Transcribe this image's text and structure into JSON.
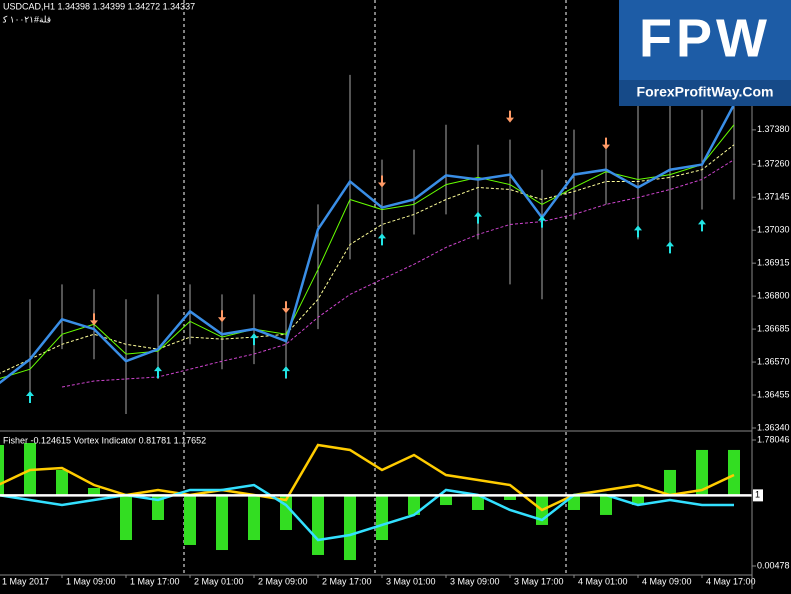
{
  "chart_data": [
    {
      "type": "price",
      "title": "USDCAD,H1  1.34398 1.34399 1.34272 1.34337",
      "subtitle": "ﻗﻠﺔ#١٠٠٢١ ﮐ",
      "ylim": [
        1.3634,
        1.37833
      ],
      "yticks": [
        {
          "value": 1.3738,
          "label": "1.37380"
        },
        {
          "value": 1.3726,
          "label": "1.37260"
        },
        1.37145,
        {
          "value": 1.3703,
          "label": "1.37030"
        },
        1.36915,
        {
          "value": 1.368,
          "label": "1.36800"
        },
        1.36685,
        {
          "value": 1.3657,
          "label": "1.36570"
        },
        1.36455,
        {
          "value": 1.3634,
          "label": "1.36340"
        }
      ],
      "candle_color": "#a8a8a8",
      "high": [
        1.3665,
        1.36789,
        1.36841,
        1.36824,
        1.36789,
        1.36806,
        1.36841,
        1.36806,
        1.36806,
        1.36754,
        1.3712,
        1.37572,
        1.37276,
        1.37311,
        1.37398,
        1.37328,
        1.37346,
        1.37241,
        1.37381,
        1.37346,
        1.37502,
        1.37468,
        1.3745,
        1.37624
      ],
      "low": [
        1.36371,
        1.36458,
        1.36615,
        1.3658,
        1.36389,
        1.36511,
        1.36632,
        1.36545,
        1.36563,
        1.36511,
        1.36685,
        1.36928,
        1.37015,
        1.37015,
        1.37085,
        1.36998,
        1.36841,
        1.36789,
        1.37067,
        1.3712,
        1.36998,
        1.36963,
        1.37102,
        1.37137
      ],
      "series": [
        {
          "color": "#cc44cc",
          "dashed": true,
          "values": [
            null,
            null,
            1.36483,
            1.36504,
            1.36511,
            1.36518,
            1.36545,
            1.36573,
            1.36598,
            1.36632,
            1.36726,
            1.36806,
            1.36859,
            1.36911,
            1.3697,
            1.37015,
            1.3705,
            1.3706,
            1.37085,
            1.3712,
            1.37144,
            1.37172,
            1.37207,
            1.37276
          ]
        },
        {
          "color": "#ffff99",
          "dashed": true,
          "values": [
            1.36528,
            1.3658,
            1.36632,
            1.36667,
            1.36632,
            1.36615,
            1.36657,
            1.3665,
            1.36657,
            1.36667,
            1.36789,
            1.3698,
            1.3705,
            1.37085,
            1.37137,
            1.37179,
            1.37172,
            1.37137,
            1.37165,
            1.372,
            1.372,
            1.37214,
            1.37241,
            1.37328
          ]
        },
        {
          "color": "#66ff00",
          "dashed": false,
          "values": [
            1.36511,
            1.36545,
            1.36667,
            1.36702,
            1.36598,
            1.36608,
            1.36712,
            1.36657,
            1.36685,
            1.36667,
            1.36893,
            1.37137,
            1.37102,
            1.3712,
            1.37189,
            1.37214,
            1.37189,
            1.3712,
            1.37179,
            1.37234,
            1.37207,
            1.37224,
            1.37259,
            1.37398
          ]
        },
        {
          "color": "#3a8ee6",
          "dashed": false,
          "width": 2.5,
          "values": [
            1.36493,
            1.3658,
            1.36719,
            1.36685,
            1.36573,
            1.36615,
            1.36747,
            1.36667,
            1.36685,
            1.36643,
            1.37033,
            1.372,
            1.37109,
            1.37137,
            1.37221,
            1.37207,
            1.37224,
            1.37074,
            1.37224,
            1.37241,
            1.37179,
            1.37241,
            1.37259,
            1.37468
          ]
        }
      ],
      "up_signals": {
        "color": "#22e5e5",
        "values": [
          null,
          1.36448,
          null,
          null,
          null,
          1.36535,
          null,
          null,
          1.3665,
          1.36535,
          null,
          null,
          1.36998,
          null,
          null,
          1.37074,
          null,
          1.3706,
          null,
          null,
          1.37026,
          1.3697,
          1.37047,
          null
        ]
      },
      "down_signals": {
        "color": "#ff9a66",
        "values": [
          null,
          null,
          null,
          1.36719,
          null,
          null,
          null,
          1.3673,
          null,
          1.36761,
          null,
          null,
          1.372,
          null,
          null,
          null,
          1.37426,
          null,
          null,
          1.37332,
          null,
          null,
          null,
          null
        ]
      }
    },
    {
      "type": "indicator",
      "title": "Fisher -0.124615  Vortex Indicator 0.81781 1.17652",
      "ylim": [
        -0.122,
        1.893
      ],
      "yticks": [
        1.78046,
        0.00478
      ],
      "level": 1,
      "categories": [
        "1 May 2017",
        null,
        "1 May 09:00",
        null,
        "1 May 17:00",
        null,
        "2 May 01:00",
        null,
        "2 May 09:00",
        null,
        "2 May 17:00",
        null,
        "3 May 01:00",
        null,
        "3 May 09:00",
        null,
        "3 May 17:00",
        null,
        "4 May 01:00",
        null,
        "4 May 09:00",
        null,
        "4 May 17:00",
        null
      ],
      "series": [
        {
          "type": "bar",
          "color": "#33dd22",
          "values": [
            1.71,
            1.738,
            1.358,
            1.104,
            0.371,
            0.653,
            0.301,
            0.23,
            0.371,
            0.512,
            0.16,
            0.089,
            0.371,
            0.724,
            0.864,
            0.794,
            0.935,
            0.583,
            0.794,
            0.724,
            0.864,
            1.358,
            1.64,
            1.64
          ]
        },
        {
          "type": "line",
          "color": "#ffcc00",
          "values": [
            1.146,
            1.358,
            1.386,
            1.146,
            1.005,
            1.076,
            1.005,
            1.076,
            1.005,
            0.935,
            1.71,
            1.64,
            1.358,
            1.569,
            1.287,
            1.217,
            1.146,
            0.794,
            1.005,
            1.076,
            1.146,
            1.005,
            1.076,
            1.287
          ]
        },
        {
          "type": "line",
          "color": "#33e0ff",
          "values": [
            1.005,
            0.935,
            0.864,
            0.935,
            1.005,
            0.935,
            1.076,
            1.076,
            1.146,
            0.864,
            0.371,
            0.442,
            0.583,
            0.724,
            1.076,
            1.005,
            0.794,
            0.653,
            1.005,
            1.005,
            0.864,
            0.935,
            0.864,
            0.864
          ]
        }
      ]
    }
  ],
  "logo": {
    "text": "FPW",
    "caption": "ForexProfitWay.Com"
  }
}
